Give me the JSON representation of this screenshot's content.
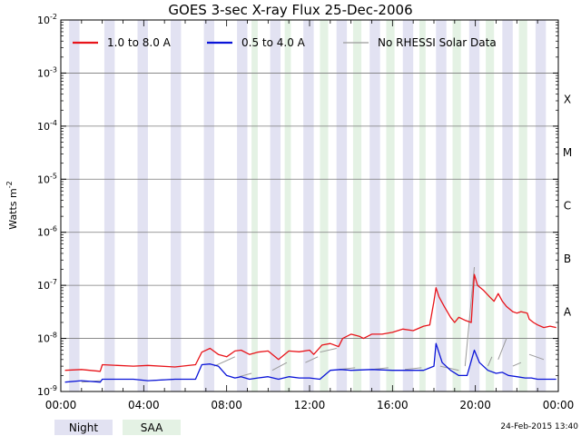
{
  "chart_data": {
    "type": "line",
    "title": "GOES 3-sec X-ray Flux   25-Dec-2006",
    "ylabel_base": "Watts m",
    "ylabel_exp": "-2",
    "xlim": [
      0,
      24
    ],
    "ylim_exponent": [
      -9,
      -2
    ],
    "y_scale": "log",
    "y_ticks": [
      {
        "base": "10",
        "exp": "-9"
      },
      {
        "base": "10",
        "exp": "-8"
      },
      {
        "base": "10",
        "exp": "-7"
      },
      {
        "base": "10",
        "exp": "-6"
      },
      {
        "base": "10",
        "exp": "-5"
      },
      {
        "base": "10",
        "exp": "-4"
      },
      {
        "base": "10",
        "exp": "-3"
      },
      {
        "base": "10",
        "exp": "-2"
      }
    ],
    "x_ticks": [
      {
        "hour": 0,
        "label": "00:00"
      },
      {
        "hour": 4,
        "label": "04:00"
      },
      {
        "hour": 8,
        "label": "08:00"
      },
      {
        "hour": 12,
        "label": "12:00"
      },
      {
        "hour": 16,
        "label": "16:00"
      },
      {
        "hour": 20,
        "label": "20:00"
      },
      {
        "hour": 24,
        "label": "00:00"
      }
    ],
    "flare_classes": [
      {
        "label": "A",
        "exp": -8
      },
      {
        "label": "B",
        "exp": -7
      },
      {
        "label": "C",
        "exp": -6
      },
      {
        "label": "M",
        "exp": -5
      },
      {
        "label": "X",
        "exp": -4
      }
    ],
    "legend": [
      {
        "label": "1.0 to 8.0 A",
        "color": "#e8141a"
      },
      {
        "label": "0.5 to 4.0 A",
        "color": "#0a14d8"
      },
      {
        "label": "No RHESSI Solar Data",
        "color": "#9a9a9a"
      }
    ],
    "night_intervals": [
      [
        0.4,
        0.9
      ],
      [
        2.1,
        2.6
      ],
      [
        3.7,
        4.2
      ],
      [
        5.3,
        5.8
      ],
      [
        6.9,
        7.4
      ],
      [
        8.5,
        9.0
      ],
      [
        10.1,
        10.6
      ],
      [
        11.7,
        12.2
      ],
      [
        13.3,
        13.8
      ],
      [
        14.9,
        15.4
      ],
      [
        16.5,
        17.0
      ],
      [
        18.1,
        18.6
      ],
      [
        19.7,
        20.2
      ],
      [
        21.3,
        21.8
      ],
      [
        22.9,
        23.4
      ]
    ],
    "saa_intervals": [
      [
        9.2,
        9.5
      ],
      [
        10.8,
        11.1
      ],
      [
        12.5,
        12.9
      ],
      [
        14.1,
        14.5
      ],
      [
        15.7,
        16.1
      ],
      [
        17.3,
        17.6
      ],
      [
        18.9,
        19.3
      ],
      [
        20.5,
        20.9
      ],
      [
        22.1,
        22.5
      ]
    ],
    "series": [
      {
        "name": "1.0 to 8.0 A",
        "color": "#e8141a",
        "x": [
          0.2,
          1.0,
          1.9,
          2.0,
          3.5,
          4.2,
          5.5,
          6.5,
          6.8,
          7.2,
          7.6,
          8.0,
          8.4,
          8.7,
          9.1,
          9.5,
          10.0,
          10.5,
          11.0,
          11.5,
          12.0,
          12.2,
          12.6,
          13.0,
          13.4,
          13.6,
          14.0,
          14.4,
          14.6,
          15.0,
          15.5,
          16.0,
          16.5,
          17.0,
          17.5,
          17.8,
          18.0,
          18.1,
          18.25,
          18.5,
          18.8,
          19.0,
          19.2,
          19.5,
          19.8,
          19.95,
          20.1,
          20.4,
          20.7,
          20.9,
          21.1,
          21.3,
          21.5,
          21.8,
          22.0,
          22.2,
          22.5,
          22.6,
          22.8,
          23.0,
          23.3,
          23.6,
          23.9
        ],
        "y": [
          2.5e-09,
          2.6e-09,
          2.4e-09,
          3.2e-09,
          3e-09,
          3.1e-09,
          2.9e-09,
          3.2e-09,
          5.5e-09,
          6.5e-09,
          5e-09,
          4.5e-09,
          5.8e-09,
          6e-09,
          5e-09,
          5.5e-09,
          5.8e-09,
          4e-09,
          5.8e-09,
          5.6e-09,
          6e-09,
          5e-09,
          7.5e-09,
          8e-09,
          7e-09,
          1e-08,
          1.2e-08,
          1.1e-08,
          1e-08,
          1.2e-08,
          1.2e-08,
          1.3e-08,
          1.5e-08,
          1.4e-08,
          1.7e-08,
          1.8e-08,
          5e-08,
          9e-08,
          6e-08,
          4e-08,
          2.5e-08,
          2e-08,
          2.5e-08,
          2.2e-08,
          2e-08,
          1.6e-07,
          1e-07,
          8e-08,
          6e-08,
          5e-08,
          7e-08,
          5e-08,
          4e-08,
          3.2e-08,
          3e-08,
          3.2e-08,
          3e-08,
          2.3e-08,
          2e-08,
          1.8e-08,
          1.6e-08,
          1.7e-08,
          1.6e-08
        ]
      },
      {
        "name": "0.5 to 4.0 A",
        "color": "#0a14d8",
        "x": [
          0.2,
          1.0,
          1.9,
          2.0,
          3.5,
          4.2,
          5.5,
          6.5,
          6.8,
          7.2,
          7.6,
          8.0,
          8.4,
          8.7,
          9.1,
          9.5,
          10.0,
          10.5,
          11.0,
          11.5,
          12.0,
          12.5,
          13.0,
          13.5,
          14.0,
          15.0,
          16.0,
          17.0,
          17.5,
          18.0,
          18.1,
          18.4,
          18.8,
          19.2,
          19.6,
          19.95,
          20.2,
          20.6,
          21.0,
          21.3,
          21.6,
          22.0,
          22.4,
          22.7,
          23.0,
          23.5,
          23.9
        ],
        "y": [
          1.5e-09,
          1.6e-09,
          1.5e-09,
          1.7e-09,
          1.7e-09,
          1.6e-09,
          1.7e-09,
          1.7e-09,
          3.2e-09,
          3.3e-09,
          3e-09,
          2e-09,
          1.8e-09,
          1.9e-09,
          1.7e-09,
          1.8e-09,
          1.9e-09,
          1.7e-09,
          1.9e-09,
          1.8e-09,
          1.8e-09,
          1.7e-09,
          2.5e-09,
          2.6e-09,
          2.5e-09,
          2.6e-09,
          2.5e-09,
          2.5e-09,
          2.5e-09,
          3e-09,
          8e-09,
          3.5e-09,
          2.5e-09,
          2e-09,
          2e-09,
          6e-09,
          3.5e-09,
          2.5e-09,
          2.2e-09,
          2.3e-09,
          2e-09,
          1.9e-09,
          1.8e-09,
          1.8e-09,
          1.7e-09,
          1.7e-09,
          1.7e-09
        ]
      },
      {
        "name": "No RHESSI Solar Data",
        "color": "#9a9a9a",
        "segments": [
          {
            "x": [
              1.0,
              1.9
            ],
            "y": [
              1.5e-09,
              1.6e-09
            ]
          },
          {
            "x": [
              4.2,
              5.5
            ],
            "y": [
              1.6e-09,
              1.7e-09
            ]
          },
          {
            "x": [
              7.4,
              8.4
            ],
            "y": [
              3e-09,
              4.5e-09
            ]
          },
          {
            "x": [
              8.6,
              9.2
            ],
            "y": [
              1.9e-09,
              2.2e-09
            ]
          },
          {
            "x": [
              10.2,
              10.9
            ],
            "y": [
              2.5e-09,
              3.5e-09
            ]
          },
          {
            "x": [
              11.8,
              12.4
            ],
            "y": [
              3.5e-09,
              4.5e-09
            ]
          },
          {
            "x": [
              12.5,
              13.3
            ],
            "y": [
              5.5e-09,
              6.5e-09
            ]
          },
          {
            "x": [
              13.4,
              14.2
            ],
            "y": [
              2.6e-09,
              2.8e-09
            ]
          },
          {
            "x": [
              15.0,
              15.8
            ],
            "y": [
              2.6e-09,
              2.8e-09
            ]
          },
          {
            "x": [
              16.6,
              17.4
            ],
            "y": [
              2.6e-09,
              2.8e-09
            ]
          },
          {
            "x": [
              18.3,
              19.2
            ],
            "y": [
              3e-09,
              2.5e-09
            ]
          },
          {
            "x": [
              19.5,
              19.95
            ],
            "y": [
              3e-09,
              2.2e-07
            ]
          },
          {
            "x": [
              20.6,
              20.8
            ],
            "y": [
              3e-09,
              4.5e-09
            ]
          },
          {
            "x": [
              21.1,
              21.5
            ],
            "y": [
              4e-09,
              1e-08
            ]
          },
          {
            "x": [
              21.8,
              22.2
            ],
            "y": [
              3e-09,
              3.5e-09
            ]
          },
          {
            "x": [
              22.6,
              23.3
            ],
            "y": [
              5e-09,
              4e-09
            ]
          }
        ]
      }
    ],
    "bottom_legend": [
      {
        "label": "Night",
        "color": "#e2e2f2"
      },
      {
        "label": "SAA",
        "color": "#e4f2e4"
      }
    ],
    "timestamp": "24-Feb-2015 13:40",
    "colors": {
      "night_band": "#e2e2f2",
      "saa_band": "#e4f2e4",
      "grid": "#7a7a7a"
    }
  }
}
